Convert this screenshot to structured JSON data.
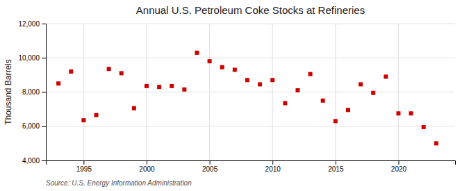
{
  "chart_data": {
    "type": "scatter",
    "title": "Annual U.S. Petroleum Coke Stocks at Refineries",
    "ylabel": "Thousand Barrels",
    "annotation": "Source: U.S. Energy Information Administration",
    "x": [
      1993,
      1994,
      1995,
      1996,
      1997,
      1998,
      1999,
      2000,
      2001,
      2002,
      2003,
      2004,
      2005,
      2006,
      2007,
      2008,
      2009,
      2010,
      2011,
      2012,
      2013,
      2014,
      2015,
      2016,
      2017,
      2018,
      2019,
      2020,
      2021,
      2022,
      2023
    ],
    "values": [
      8500,
      9200,
      6350,
      6650,
      9350,
      9100,
      7050,
      8350,
      8300,
      8350,
      8150,
      10300,
      9800,
      9450,
      9300,
      8700,
      8450,
      8700,
      7350,
      8100,
      9050,
      7500,
      6300,
      6950,
      8450,
      7950,
      8900,
      6750,
      6750,
      5950,
      5000
    ],
    "color": "#cc0000",
    "marker": "square",
    "xlim": [
      1992,
      2024.5
    ],
    "ylim": [
      4000,
      12000
    ],
    "xticks": [
      1995,
      2000,
      2005,
      2010,
      2015,
      2020
    ],
    "yticks": [
      {
        "value": 4000,
        "label": "4,000"
      },
      {
        "value": 6000,
        "label": "6,000"
      },
      {
        "value": 8000,
        "label": "8,000"
      },
      {
        "value": 10000,
        "label": "10,000"
      },
      {
        "value": 12000,
        "label": "12,000"
      }
    ],
    "grid": true
  }
}
